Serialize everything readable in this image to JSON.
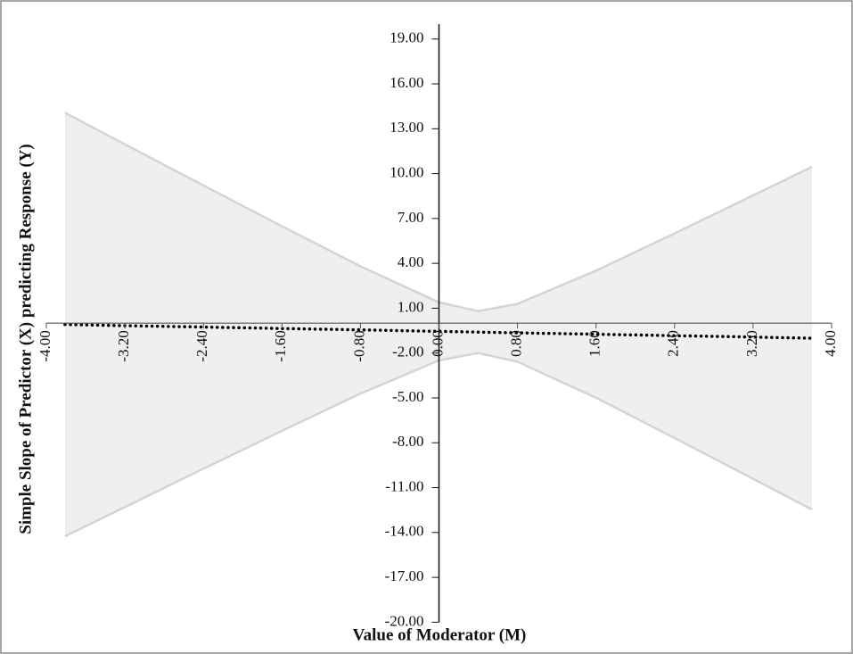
{
  "chart_data": {
    "type": "band",
    "x_label": "Value of Moderator (M)",
    "y_label": "Simple Slope of Predictor (X) predicting Response (Y)",
    "x": [
      -3.81,
      -3.2,
      -2.4,
      -1.6,
      -0.8,
      0,
      0.4,
      0.8,
      1.6,
      2.4,
      3.2,
      3.8
    ],
    "series": [
      {
        "color": "#d4d4d4",
        "values": [
          14.07,
          11.96,
          9.21,
          6.48,
          3.8,
          1.39,
          0.8,
          1.29,
          3.51,
          6.0,
          8.54,
          10.45
        ]
      },
      {
        "color": "#d4d4d4",
        "values": [
          -14.25,
          -12.3,
          -9.74,
          -7.2,
          -4.71,
          -2.49,
          -2.0,
          -2.58,
          -4.99,
          -7.68,
          -10.41,
          -12.47
        ]
      },
      {
        "color": "#000000",
        "values": [
          -0.09,
          -0.17,
          -0.26,
          -0.36,
          -0.45,
          -0.55,
          -0.6,
          -0.65,
          -0.74,
          -0.84,
          -0.93,
          -1.01
        ]
      }
    ],
    "band_fill": "#efefef",
    "xlim": [
      -4,
      4
    ],
    "ylim": [
      -20,
      20
    ],
    "xticks": [
      {
        "value": -4,
        "label": "-4.00"
      },
      {
        "value": -3.2,
        "label": "-3.20"
      },
      {
        "value": -2.4,
        "label": "-2.40"
      },
      {
        "value": -1.6,
        "label": "-1.60"
      },
      {
        "value": -0.8,
        "label": "-0.80"
      },
      {
        "value": 0,
        "label": "0.00"
      },
      {
        "value": 0.8,
        "label": "0.80"
      },
      {
        "value": 1.6,
        "label": "1.60"
      },
      {
        "value": 2.4,
        "label": "2.40"
      },
      {
        "value": 3.2,
        "label": "3.20"
      },
      {
        "value": 4,
        "label": "4.00"
      }
    ],
    "yticks": [
      {
        "value": -20,
        "label": "-20.00"
      },
      {
        "value": -17,
        "label": "-17.00"
      },
      {
        "value": -14,
        "label": "-14.00"
      },
      {
        "value": -11,
        "label": "-11.00"
      },
      {
        "value": -8,
        "label": "-8.00"
      },
      {
        "value": -5,
        "label": "-5.00"
      },
      {
        "value": -2,
        "label": "-2.00"
      },
      {
        "value": 1,
        "label": "1.00"
      },
      {
        "value": 4,
        "label": "4.00"
      },
      {
        "value": 7,
        "label": "7.00"
      },
      {
        "value": 10,
        "label": "10.00"
      },
      {
        "value": 13,
        "label": "13.00"
      },
      {
        "value": 16,
        "label": "16.00"
      },
      {
        "value": 19,
        "label": "19.00"
      }
    ]
  }
}
